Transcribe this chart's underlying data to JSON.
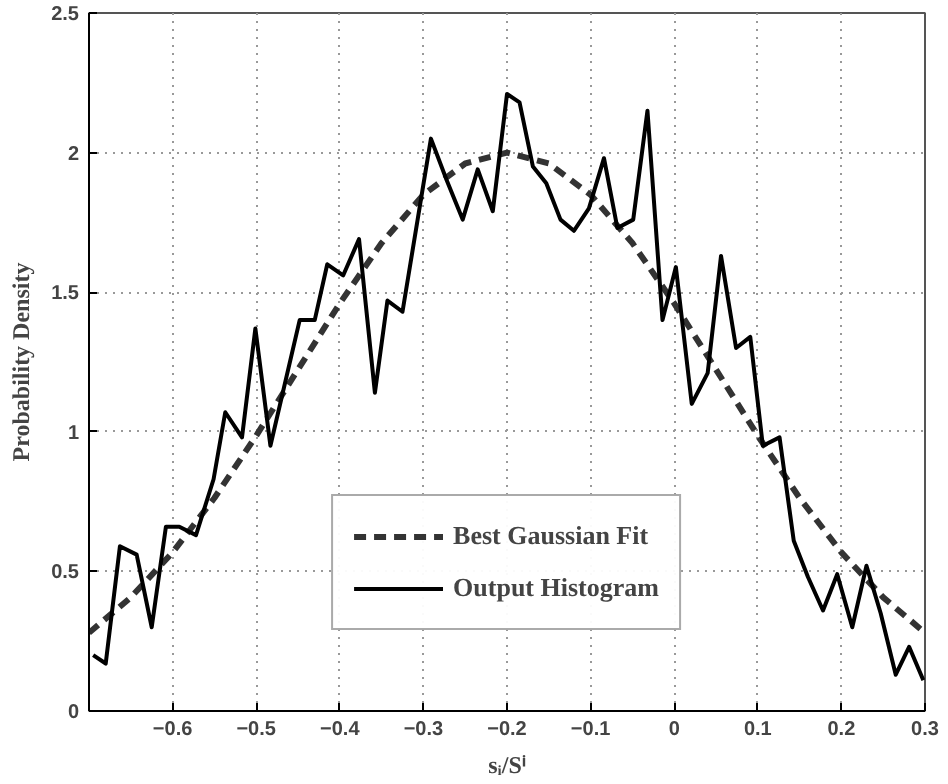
{
  "chart_data": {
    "type": "line",
    "xlabel": "sᵢ/Sⁱ",
    "ylabel": "Probability Density",
    "xlim": [
      -0.7,
      0.3
    ],
    "xticks": [
      -0.6,
      -0.5,
      -0.4,
      -0.3,
      -0.2,
      -0.1,
      0,
      0.1,
      0.2,
      0.3
    ],
    "ylim": [
      0,
      2.5
    ],
    "yticks": [
      0,
      0.5,
      1,
      1.5,
      2,
      2.5
    ],
    "grid": true,
    "legend": "bottom",
    "series": [
      {
        "name": "Best Gaussian Fit",
        "color": "#333333",
        "line_style": "dashed",
        "x": [
          -0.7,
          -0.65,
          -0.6,
          -0.55,
          -0.5,
          -0.45,
          -0.4,
          -0.35,
          -0.3,
          -0.25,
          -0.2,
          -0.15,
          -0.1,
          -0.05,
          0,
          0.05,
          0.1,
          0.15,
          0.2,
          0.25,
          0.3
        ],
        "values": [
          0.28,
          0.407,
          0.568,
          0.763,
          0.986,
          1.223,
          1.46,
          1.676,
          1.849,
          1.961,
          2.0,
          1.961,
          1.849,
          1.676,
          1.46,
          1.223,
          0.986,
          0.763,
          0.568,
          0.407,
          0.28
        ]
      },
      {
        "name": "Output Histogram",
        "color": "#000000",
        "line_style": "solid",
        "x": [
          -0.695,
          -0.68,
          -0.663,
          -0.643,
          -0.625,
          -0.608,
          -0.592,
          -0.572,
          -0.551,
          -0.537,
          -0.517,
          -0.501,
          -0.483,
          -0.448,
          -0.43,
          -0.415,
          -0.396,
          -0.377,
          -0.358,
          -0.343,
          -0.325,
          -0.291,
          -0.272,
          -0.253,
          -0.235,
          -0.217,
          -0.2,
          -0.185,
          -0.169,
          -0.153,
          -0.136,
          -0.12,
          -0.102,
          -0.084,
          -0.068,
          -0.049,
          -0.032,
          -0.014,
          0.002,
          0.021,
          0.04,
          0.056,
          0.074,
          0.091,
          0.106,
          0.126,
          0.143,
          0.16,
          0.178,
          0.195,
          0.213,
          0.23,
          0.247,
          0.265,
          0.281,
          0.298
        ],
        "values": [
          0.2,
          0.17,
          0.59,
          0.56,
          0.3,
          0.66,
          0.66,
          0.63,
          0.83,
          1.07,
          0.98,
          1.37,
          0.95,
          1.4,
          1.4,
          1.6,
          1.56,
          1.69,
          1.14,
          1.47,
          1.43,
          2.05,
          1.9,
          1.76,
          1.94,
          1.79,
          2.21,
          2.18,
          1.95,
          1.89,
          1.76,
          1.72,
          1.8,
          1.98,
          1.73,
          1.76,
          2.15,
          1.4,
          1.59,
          1.1,
          1.21,
          1.63,
          1.3,
          1.34,
          0.95,
          0.98,
          0.61,
          0.48,
          0.36,
          0.49,
          0.3,
          0.52,
          0.35,
          0.13,
          0.23,
          0.11
        ]
      }
    ]
  }
}
